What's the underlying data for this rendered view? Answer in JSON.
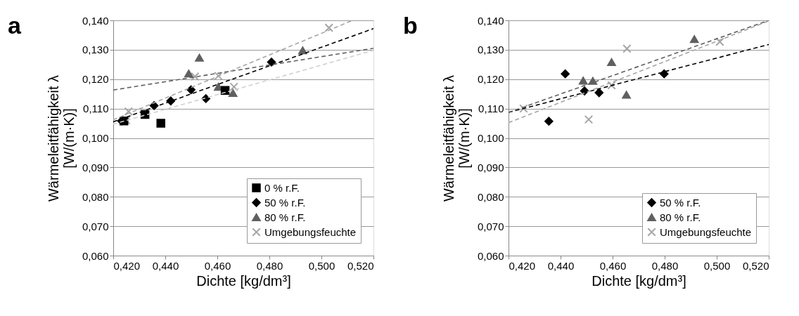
{
  "chart_data": [
    {
      "type": "scatter",
      "annotations": [
        "a"
      ],
      "xlabel": "Dichte [kg/dm³]",
      "ylabel": "Wärmeleitfähigkeit λ\n[W/(m·K)]",
      "xlim": [
        0.42,
        0.52
      ],
      "ylim": [
        0.06,
        0.14
      ],
      "xticks": [
        {
          "value": 0.42,
          "label": "0,420"
        },
        {
          "value": 0.44,
          "label": "0,440"
        },
        {
          "value": 0.46,
          "label": "0,460"
        },
        {
          "value": 0.48,
          "label": "0,480"
        },
        {
          "value": 0.5,
          "label": "0,500"
        },
        {
          "value": 0.52,
          "label": "0,520"
        }
      ],
      "yticks": [
        {
          "value": 0.06,
          "label": "0,060"
        },
        {
          "value": 0.07,
          "label": "0,070"
        },
        {
          "value": 0.08,
          "label": "0,080"
        },
        {
          "value": 0.09,
          "label": "0,090"
        },
        {
          "value": 0.1,
          "label": "0,100"
        },
        {
          "value": 0.11,
          "label": "0,110"
        },
        {
          "value": 0.12,
          "label": "0,120"
        },
        {
          "value": 0.13,
          "label": "0,130"
        },
        {
          "value": 0.14,
          "label": "0,140"
        }
      ],
      "grid": "y",
      "legend": "bottom right",
      "series": [
        {
          "name": "0 % r.F.",
          "color": "#000000",
          "marker": "square",
          "x": [
            0.4241,
            0.4322,
            0.4383,
            0.463
          ],
          "values": [
            0.1058,
            0.108,
            0.105,
            0.1162
          ]
        },
        {
          "name": "50 % r.F.",
          "color": "#000000",
          "marker": "diamond",
          "x": [
            0.4232,
            0.4357,
            0.4421,
            0.4499,
            0.4556,
            0.4808
          ],
          "values": [
            0.1058,
            0.111,
            0.1126,
            0.1164,
            0.1134,
            0.1258
          ]
        },
        {
          "name": "80 % r.F.",
          "color": "#606060",
          "marker": "triangle",
          "x": [
            0.449,
            0.4531,
            0.4604,
            0.466,
            0.4928
          ],
          "values": [
            0.1219,
            0.1273,
            0.1174,
            0.1153,
            0.1298
          ]
        },
        {
          "name": "Umgebungsfeuchte",
          "color": "#a6a6a6",
          "marker": "cross",
          "x": [
            0.4259,
            0.425,
            0.4514,
            0.4604,
            0.4664,
            0.5029
          ],
          "values": [
            0.109,
            0.106,
            0.1209,
            0.1211,
            0.1174,
            0.1375
          ]
        },
        {
          "type": "line",
          "color": "#d0d0d0",
          "line_style": "dashed",
          "x": [
            0.42,
            0.52
          ],
          "values": [
            0.1047,
            0.1298
          ]
        },
        {
          "type": "line",
          "color": "#000000",
          "line_style": "dashed",
          "x": [
            0.42,
            0.52
          ],
          "values": [
            0.1055,
            0.1372
          ]
        },
        {
          "type": "line",
          "color": "#606060",
          "line_style": "dashed",
          "x": [
            0.42,
            0.52
          ],
          "values": [
            0.1163,
            0.1305
          ]
        },
        {
          "type": "line",
          "color": "#a6a6a6",
          "line_style": "dashed",
          "x": [
            0.42,
            0.512
          ],
          "values": [
            0.1062,
            0.14
          ]
        }
      ]
    },
    {
      "type": "scatter",
      "annotations": [
        "b"
      ],
      "xlabel": "Dichte [kg/dm³]",
      "ylabel": "Wärmeleitfähigkeit λ\n[W/(m·K)]",
      "xlim": [
        0.42,
        0.52
      ],
      "ylim": [
        0.06,
        0.14
      ],
      "xticks": [
        {
          "value": 0.42,
          "label": "0,420"
        },
        {
          "value": 0.44,
          "label": "0,440"
        },
        {
          "value": 0.46,
          "label": "0,460"
        },
        {
          "value": 0.48,
          "label": "0,480"
        },
        {
          "value": 0.5,
          "label": "0,500"
        },
        {
          "value": 0.52,
          "label": "0,520"
        }
      ],
      "yticks": [
        {
          "value": 0.06,
          "label": "0,060"
        },
        {
          "value": 0.07,
          "label": "0,070"
        },
        {
          "value": 0.08,
          "label": "0,080"
        },
        {
          "value": 0.09,
          "label": "0,090"
        },
        {
          "value": 0.1,
          "label": "0,100"
        },
        {
          "value": 0.11,
          "label": "0,110"
        },
        {
          "value": 0.12,
          "label": "0,120"
        },
        {
          "value": 0.13,
          "label": "0,130"
        },
        {
          "value": 0.14,
          "label": "0,140"
        }
      ],
      "grid": "y",
      "legend": "bottom right",
      "series": [
        {
          "name": "50 % r.F.",
          "color": "#000000",
          "marker": "diamond",
          "x": [
            0.4355,
            0.4418,
            0.4492,
            0.4548,
            0.4798
          ],
          "values": [
            0.1057,
            0.1218,
            0.116,
            0.1154,
            0.1218
          ]
        },
        {
          "name": "80 % r.F.",
          "color": "#606060",
          "marker": "triangle",
          "x": [
            0.4487,
            0.4524,
            0.4596,
            0.4653,
            0.4914
          ],
          "values": [
            0.1195,
            0.1194,
            0.1258,
            0.1147,
            0.1336
          ]
        },
        {
          "name": "Umgebungsfeuchte",
          "color": "#a6a6a6",
          "marker": "cross",
          "x": [
            0.4258,
            0.4508,
            0.4596,
            0.4655,
            0.5012
          ],
          "values": [
            0.11,
            0.1063,
            0.1179,
            0.1304,
            0.1327
          ]
        },
        {
          "type": "line",
          "color": "#000000",
          "line_style": "dashed",
          "x": [
            0.42,
            0.52
          ],
          "values": [
            0.1087,
            0.1318
          ]
        },
        {
          "type": "line",
          "color": "#606060",
          "line_style": "dashed",
          "x": [
            0.42,
            0.52
          ],
          "values": [
            0.1087,
            0.14
          ]
        },
        {
          "type": "line",
          "color": "#a6a6a6",
          "line_style": "dashed",
          "x": [
            0.42,
            0.52
          ],
          "values": [
            0.1052,
            0.1398
          ]
        }
      ]
    }
  ]
}
